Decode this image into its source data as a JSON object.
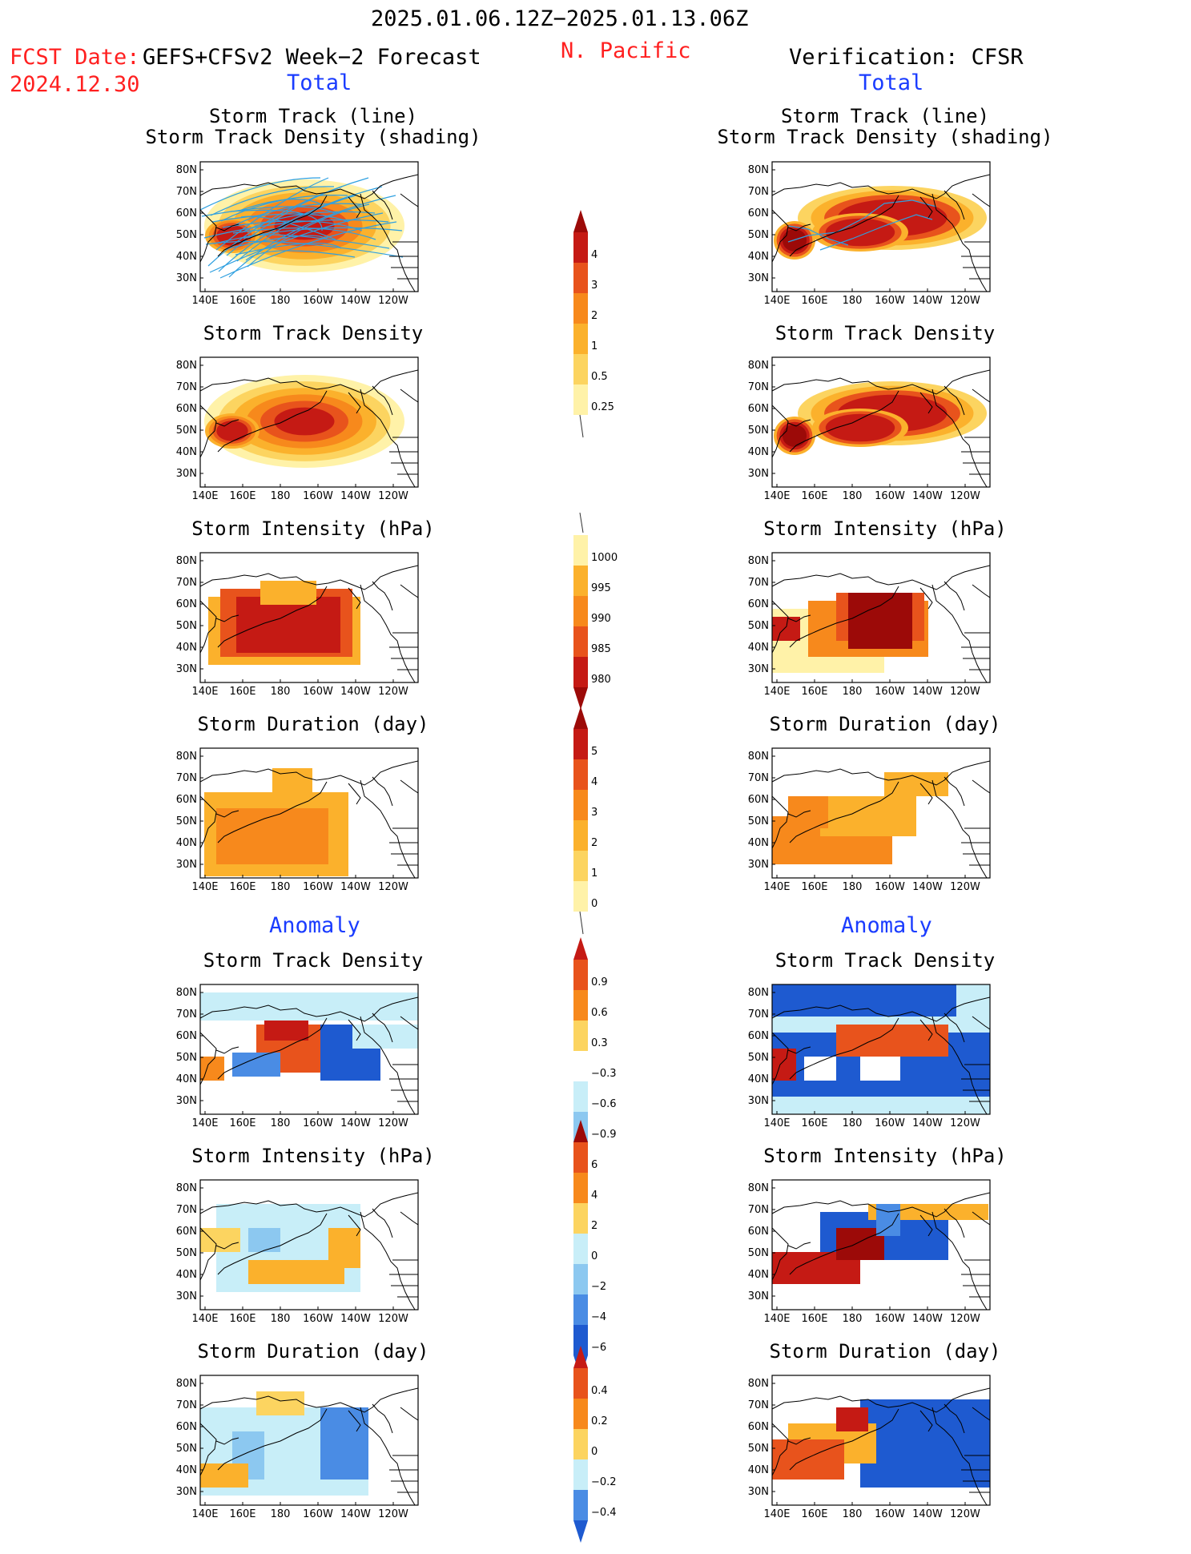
{
  "header": {
    "period": "2025.01.06.12Z−2025.01.13.06Z",
    "region": "N. Pacific",
    "fcst_label": "FCST Date:",
    "fcst_product": "GEFS+CFSv2 Week−2 Forecast",
    "fcst_date": "2024.12.30",
    "verification": "Verification: CFSR",
    "left_total": "Total",
    "right_total": "Total",
    "left_anomaly": "Anomaly",
    "right_anomaly": "Anomaly"
  },
  "titles": {
    "track_line": "Storm Track (line)",
    "track_density_shading": "Storm Track Density (shading)",
    "track_density": "Storm Track Density",
    "intensity": "Storm Intensity (hPa)",
    "duration": "Storm Duration (day)"
  },
  "axes": {
    "lat": [
      "80N",
      "70N",
      "60N",
      "50N",
      "40N",
      "30N"
    ],
    "lon": [
      "140E",
      "160E",
      "180",
      "160W",
      "140W",
      "120W"
    ]
  },
  "colorbars": {
    "density": [
      "4",
      "3",
      "2",
      "1",
      "0.5",
      "0.25"
    ],
    "intensity": [
      "1000",
      "995",
      "990",
      "985",
      "980"
    ],
    "duration": [
      "5",
      "4",
      "3",
      "2",
      "1",
      "0"
    ],
    "anom_density": [
      "0.9",
      "0.6",
      "0.3",
      "−0.3",
      "−0.6",
      "−0.9"
    ],
    "anom_intensity": [
      "6",
      "4",
      "2",
      "0",
      "−2",
      "−4",
      "−6"
    ],
    "anom_duration": [
      "0.4",
      "0.2",
      "0",
      "−0.2",
      "−0.4"
    ]
  }
}
